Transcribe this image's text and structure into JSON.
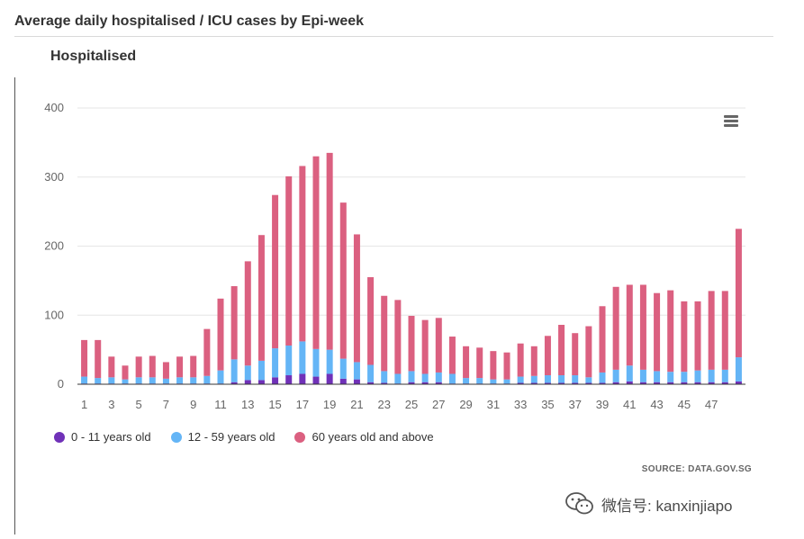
{
  "page": {
    "title": "Average daily hospitalised / ICU cases by Epi-week",
    "watermark": "微信号: kanxinjiapo"
  },
  "chart_data": {
    "type": "bar",
    "stacked": true,
    "title": "Hospitalised",
    "source": "SOURCE: DATA.GOV.SG",
    "xlabel": "",
    "ylabel": "",
    "ylim": [
      0,
      400
    ],
    "yticks": [
      0,
      100,
      200,
      300,
      400
    ],
    "grid": true,
    "legend_position": "bottom-left",
    "categories": [
      1,
      2,
      3,
      4,
      5,
      6,
      7,
      8,
      9,
      10,
      11,
      12,
      13,
      14,
      15,
      16,
      17,
      18,
      19,
      20,
      21,
      22,
      23,
      24,
      25,
      26,
      27,
      28,
      29,
      30,
      31,
      32,
      33,
      34,
      35,
      36,
      37,
      38,
      39,
      40,
      41,
      42,
      43,
      44,
      45,
      46,
      47,
      48,
      49
    ],
    "xticks_shown": [
      1,
      3,
      5,
      7,
      9,
      11,
      13,
      15,
      17,
      19,
      21,
      23,
      25,
      27,
      29,
      31,
      33,
      35,
      37,
      39,
      41,
      43,
      45,
      47
    ],
    "series": [
      {
        "name": "0 - 11 years old",
        "color": "#7031b8",
        "values": [
          1,
          1,
          1,
          1,
          1,
          1,
          1,
          1,
          1,
          1,
          1,
          3,
          6,
          6,
          10,
          13,
          15,
          11,
          15,
          8,
          7,
          3,
          2,
          1,
          3,
          3,
          3,
          1,
          1,
          1,
          1,
          1,
          2,
          2,
          2,
          2,
          2,
          2,
          2,
          3,
          4,
          3,
          3,
          3,
          3,
          3,
          3,
          3,
          4
        ]
      },
      {
        "name": "12 - 59 years old",
        "color": "#64b5f6",
        "values": [
          10,
          8,
          9,
          6,
          9,
          9,
          7,
          9,
          9,
          11,
          19,
          33,
          21,
          28,
          42,
          43,
          47,
          40,
          35,
          29,
          25,
          25,
          17,
          14,
          16,
          12,
          14,
          14,
          8,
          8,
          6,
          6,
          9,
          10,
          11,
          11,
          11,
          8,
          15,
          18,
          23,
          18,
          16,
          15,
          15,
          17,
          18,
          18,
          35
        ]
      },
      {
        "name": "60 years old and above",
        "color": "#db6080",
        "values": [
          53,
          55,
          30,
          20,
          30,
          31,
          24,
          30,
          31,
          68,
          104,
          106,
          151,
          182,
          222,
          245,
          254,
          279,
          285,
          226,
          185,
          127,
          109,
          107,
          80,
          78,
          79,
          54,
          46,
          44,
          41,
          39,
          48,
          43,
          57,
          73,
          61,
          74,
          96,
          120,
          117,
          123,
          113,
          118,
          102,
          100,
          114,
          114,
          186
        ]
      }
    ]
  }
}
